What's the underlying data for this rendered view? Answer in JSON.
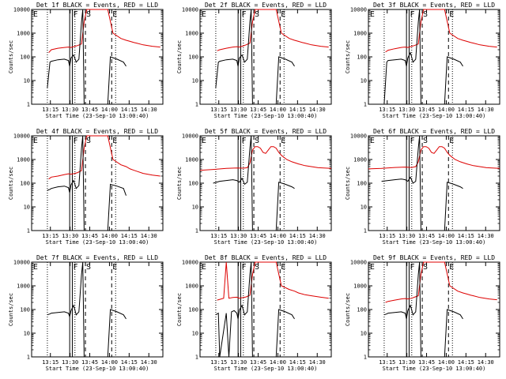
{
  "colors": {
    "events": "#000000",
    "lld": "#dd0000",
    "background": "#ffffff"
  },
  "common": {
    "ylabel": "Counts/sec",
    "xlabel": "Start Time (23-Sep-10 13:00:40)",
    "x_ticks": [
      "13:15",
      "13:30",
      "13:45",
      "14:00",
      "14:15",
      "14:30"
    ],
    "y_ticks": [
      "1",
      "10",
      "100",
      "1000",
      "10000"
    ],
    "ylim": [
      1,
      10000
    ],
    "xlim_minutes": [
      0,
      100
    ],
    "yscale": "log",
    "markers": {
      "E1": "E",
      "F": "F",
      "S": "S",
      "E2": "E"
    }
  },
  "chart_data": [
    {
      "type": "line",
      "title": "Det 1f BLACK = Events, RED = LLD",
      "ylabel": "Counts/sec",
      "xlabel": "Start Time (23-Sep-10 13:00:40)",
      "series": [
        {
          "values_x": [
            13,
            15,
            20,
            25,
            28,
            30,
            33,
            35,
            38,
            40,
            42,
            58,
            62,
            68,
            72,
            75,
            78,
            80,
            85,
            92,
            98
          ],
          "values_y": [
            150,
            200,
            230,
            250,
            260,
            250,
            280,
            300,
            350,
            3000,
            10000,
            10000,
            1000,
            600,
            500,
            450,
            400,
            380,
            320,
            280,
            260
          ]
        },
        {
          "values_x": [
            12,
            14,
            15,
            20,
            25,
            28,
            29,
            30,
            32,
            34,
            36,
            38,
            39,
            40,
            58,
            60,
            65,
            70,
            72
          ],
          "values_y": [
            5,
            60,
            65,
            75,
            80,
            70,
            40,
            90,
            120,
            60,
            80,
            3000,
            10000,
            1,
            1,
            100,
            80,
            60,
            40
          ]
        }
      ]
    },
    {
      "type": "line",
      "title": "Det 2f BLACK = Events, RED = LLD",
      "ylabel": "Counts/sec",
      "xlabel": "Start Time (23-Sep-10 13:00:40)",
      "series": [
        {
          "values_x": [
            13,
            15,
            20,
            25,
            28,
            30,
            33,
            35,
            38,
            40,
            42,
            58,
            62,
            68,
            72,
            75,
            78,
            80,
            85,
            92,
            98
          ],
          "values_y": [
            180,
            200,
            230,
            260,
            270,
            260,
            290,
            320,
            380,
            3000,
            10000,
            10000,
            1000,
            600,
            500,
            450,
            400,
            380,
            320,
            280,
            260
          ]
        },
        {
          "values_x": [
            12,
            14,
            15,
            20,
            25,
            28,
            29,
            30,
            32,
            34,
            36,
            38,
            39,
            40,
            58,
            60,
            65,
            70,
            72
          ],
          "values_y": [
            5,
            60,
            65,
            75,
            80,
            70,
            40,
            90,
            120,
            60,
            80,
            3000,
            10000,
            1,
            1,
            100,
            80,
            60,
            40
          ]
        }
      ]
    },
    {
      "type": "line",
      "title": "Det 3f BLACK = Events, RED = LLD",
      "ylabel": "Counts/sec",
      "xlabel": "Start Time (23-Sep-10 13:00:40)",
      "series": [
        {
          "values_x": [
            13,
            15,
            20,
            25,
            28,
            30,
            33,
            35,
            38,
            40,
            42,
            58,
            62,
            68,
            72,
            75,
            78,
            80,
            85,
            92,
            98
          ],
          "values_y": [
            160,
            190,
            220,
            250,
            260,
            250,
            280,
            300,
            350,
            3000,
            10000,
            10000,
            1000,
            600,
            500,
            450,
            400,
            380,
            320,
            280,
            260
          ]
        },
        {
          "values_x": [
            12,
            14,
            15,
            20,
            25,
            28,
            29,
            30,
            32,
            34,
            36,
            38,
            39,
            40,
            58,
            60,
            65,
            70,
            72
          ],
          "values_y": [
            1,
            60,
            70,
            75,
            80,
            70,
            40,
            90,
            150,
            60,
            80,
            3000,
            10000,
            1,
            1,
            100,
            80,
            60,
            40
          ]
        }
      ]
    },
    {
      "type": "line",
      "title": "Det 4f BLACK = Events, RED = LLD",
      "ylabel": "Counts/sec",
      "xlabel": "Start Time (23-Sep-10 13:00:40)",
      "series": [
        {
          "values_x": [
            13,
            15,
            20,
            25,
            28,
            30,
            33,
            35,
            38,
            40,
            42,
            58,
            62,
            68,
            72,
            75,
            78,
            80,
            85,
            92,
            98
          ],
          "values_y": [
            150,
            180,
            200,
            230,
            250,
            240,
            260,
            280,
            340,
            3000,
            10000,
            10000,
            1000,
            600,
            500,
            400,
            350,
            320,
            260,
            220,
            200
          ]
        },
        {
          "values_x": [
            12,
            14,
            15,
            20,
            25,
            28,
            29,
            30,
            32,
            34,
            36,
            38,
            39,
            40,
            58,
            60,
            65,
            70,
            72
          ],
          "values_y": [
            50,
            55,
            60,
            70,
            75,
            65,
            40,
            85,
            130,
            60,
            80,
            3000,
            10000,
            1,
            1,
            90,
            75,
            60,
            30
          ]
        }
      ]
    },
    {
      "type": "line",
      "title": "Det 5f BLACK = Events, RED = LLD",
      "ylabel": "Counts/sec",
      "xlabel": "Start Time (23-Sep-10 13:00:40)",
      "series": [
        {
          "values_x": [
            0,
            10,
            20,
            28,
            33,
            36,
            38,
            40,
            42,
            44,
            46,
            48,
            50,
            52,
            54,
            56,
            58,
            60,
            62,
            66,
            70,
            75,
            80,
            90,
            100
          ],
          "values_y": [
            350,
            380,
            420,
            440,
            430,
            450,
            700,
            2500,
            3500,
            3500,
            3000,
            2000,
            1800,
            2500,
            3500,
            3500,
            3000,
            2000,
            1500,
            1000,
            800,
            650,
            550,
            450,
            420
          ]
        },
        {
          "values_x": [
            10,
            15,
            20,
            25,
            28,
            30,
            32,
            34,
            36,
            38,
            39,
            40,
            58,
            60,
            65,
            70,
            72
          ],
          "values_y": [
            100,
            120,
            130,
            140,
            130,
            110,
            160,
            90,
            110,
            3000,
            10000,
            1,
            1,
            110,
            90,
            70,
            60
          ]
        }
      ]
    },
    {
      "type": "line",
      "title": "Det 6f BLACK = Events, RED = LLD",
      "ylabel": "Counts/sec",
      "xlabel": "Start Time (23-Sep-10 13:00:40)",
      "series": [
        {
          "values_x": [
            0,
            10,
            20,
            28,
            33,
            36,
            38,
            40,
            42,
            44,
            46,
            48,
            50,
            52,
            54,
            56,
            58,
            60,
            62,
            66,
            70,
            75,
            80,
            90,
            100
          ],
          "values_y": [
            400,
            420,
            460,
            480,
            460,
            500,
            800,
            2500,
            3500,
            3500,
            3000,
            2000,
            1800,
            2500,
            3500,
            3500,
            3000,
            2000,
            1500,
            1000,
            800,
            650,
            550,
            450,
            420
          ]
        },
        {
          "values_x": [
            10,
            15,
            20,
            25,
            28,
            30,
            32,
            34,
            36,
            38,
            39,
            40,
            58,
            60,
            65,
            70,
            72
          ],
          "values_y": [
            120,
            130,
            140,
            150,
            140,
            120,
            180,
            100,
            120,
            3000,
            10000,
            1,
            1,
            110,
            90,
            70,
            60
          ]
        }
      ]
    },
    {
      "type": "line",
      "title": "Det 7f BLACK = Events, RED = LLD",
      "ylabel": "Counts/sec",
      "xlabel": "Start Time (23-Sep-10 13:00:40)",
      "series": [
        {
          "values_x": [],
          "values_y": []
        },
        {
          "values_x": [
            12,
            14,
            15,
            20,
            25,
            28,
            29,
            30,
            32,
            34,
            36,
            38,
            39,
            40,
            58,
            60,
            65,
            70,
            72
          ],
          "values_y": [
            60,
            65,
            70,
            75,
            80,
            70,
            50,
            90,
            150,
            60,
            80,
            3000,
            10000,
            1,
            1,
            100,
            80,
            60,
            40
          ]
        }
      ]
    },
    {
      "type": "line",
      "title": "Det 8f BLACK = Events, RED = LLD",
      "ylabel": "Counts/sec",
      "xlabel": "Start Time (23-Sep-10 13:00:40)",
      "series": [
        {
          "values_x": [
            13,
            18,
            20,
            22,
            25,
            28,
            30,
            33,
            35,
            38,
            40,
            42,
            58,
            62,
            68,
            72,
            75,
            78,
            80,
            85,
            92,
            98
          ],
          "values_y": [
            250,
            300,
            10000,
            300,
            320,
            330,
            300,
            320,
            340,
            400,
            3000,
            10000,
            10000,
            1000,
            700,
            600,
            500,
            450,
            420,
            380,
            330,
            300
          ]
        },
        {
          "values_x": [
            12,
            14,
            15,
            20,
            22,
            24,
            26,
            28,
            29,
            30,
            32,
            34,
            36,
            38,
            39,
            40,
            58,
            60,
            65,
            70,
            72
          ],
          "values_y": [
            60,
            70,
            1,
            70,
            1,
            80,
            90,
            70,
            40,
            95,
            150,
            60,
            80,
            3000,
            10000,
            1,
            1,
            100,
            80,
            60,
            40
          ]
        }
      ]
    },
    {
      "type": "line",
      "title": "Det 9f BLACK = Events, RED = LLD",
      "ylabel": "Counts/sec",
      "xlabel": "Start Time (23-Sep-10 13:00:40)",
      "series": [
        {
          "values_x": [
            13,
            15,
            20,
            25,
            28,
            30,
            33,
            35,
            38,
            40,
            42,
            58,
            62,
            68,
            72,
            75,
            78,
            80,
            85,
            92,
            98
          ],
          "values_y": [
            200,
            220,
            250,
            280,
            290,
            280,
            300,
            330,
            380,
            3000,
            10000,
            10000,
            1000,
            600,
            500,
            450,
            400,
            380,
            320,
            280,
            260
          ]
        },
        {
          "values_x": [
            12,
            14,
            15,
            20,
            25,
            28,
            29,
            30,
            32,
            34,
            36,
            38,
            39,
            40,
            58,
            60,
            65,
            70,
            72
          ],
          "values_y": [
            60,
            65,
            70,
            75,
            80,
            70,
            40,
            90,
            150,
            60,
            80,
            3000,
            10000,
            1,
            1,
            100,
            80,
            60,
            40
          ]
        }
      ]
    }
  ]
}
